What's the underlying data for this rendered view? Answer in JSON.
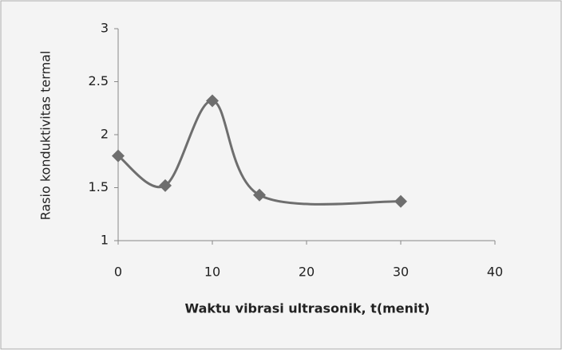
{
  "chart_data": {
    "type": "line",
    "x_label": "Waktu vibrasi ultrasonik, t(menit)",
    "y_label": "Rasio konduktivitas termal",
    "x": [
      0,
      5,
      10,
      15,
      30
    ],
    "series": [
      {
        "color": "#6e6e6e",
        "values": [
          1.8,
          1.52,
          2.32,
          1.43,
          1.37
        ]
      }
    ],
    "xlim": [
      0,
      40
    ],
    "xticks": [
      0,
      10,
      20,
      30,
      40
    ],
    "ylim": [
      1,
      3
    ],
    "yticks": [
      1,
      1.5,
      2,
      2.5,
      3
    ],
    "smooth": true
  }
}
